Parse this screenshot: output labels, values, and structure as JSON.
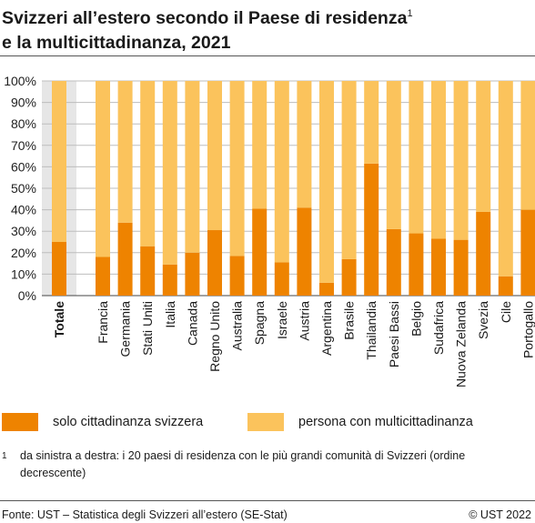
{
  "title": {
    "line1": "Svizzeri all’estero secondo il Paese di residenza",
    "sup": "1",
    "line2": "e la multicittadinanza, 2021"
  },
  "colors": {
    "solo": "#ee8300",
    "multi": "#fbc35c",
    "total_background": "#e6e6e6"
  },
  "chart_data": {
    "type": "bar",
    "stacked": true,
    "percent": true,
    "categories": [
      "Totale",
      "Francia",
      "Germania",
      "Stati Uniti",
      "Italia",
      "Canada",
      "Regno Unito",
      "Australia",
      "Spagna",
      "Israele",
      "Austria",
      "Argentina",
      "Brasile",
      "Thailandia",
      "Paesi Bassi",
      "Belgio",
      "Sudafrica",
      "Nuova Zelanda",
      "Svezia",
      "Cile",
      "Portogallo"
    ],
    "series": [
      {
        "name": "solo cittadinanza svizzera",
        "values": [
          25,
          18,
          34,
          23,
          14.5,
          20,
          30.5,
          18.5,
          40.5,
          15.5,
          41,
          6,
          17,
          61.5,
          31,
          29,
          26.5,
          26,
          39,
          9,
          40
        ]
      },
      {
        "name": "persona con multicittadinanza",
        "values": [
          75,
          82,
          66,
          77,
          85.5,
          80,
          69.5,
          81.5,
          59.5,
          84.5,
          59,
          94,
          83,
          38.5,
          69,
          71,
          73.5,
          74,
          61,
          91,
          60
        ]
      }
    ],
    "yticks": [
      "0%",
      "10%",
      "20%",
      "30%",
      "40%",
      "50%",
      "60%",
      "70%",
      "80%",
      "90%",
      "100%"
    ],
    "ylim": [
      0,
      100
    ],
    "grid": true,
    "legend_position": "bottom"
  },
  "footnote": {
    "marker": "1",
    "text": "da sinistra a destra: i 20 paesi di residenza con le più grandi comunità di Svizzeri (ordine decrescente)"
  },
  "footer": {
    "source": "Fonte: UST – Statistica degli Svizzeri all’estero (SE-Stat)",
    "copyright": "© UST 2022"
  }
}
